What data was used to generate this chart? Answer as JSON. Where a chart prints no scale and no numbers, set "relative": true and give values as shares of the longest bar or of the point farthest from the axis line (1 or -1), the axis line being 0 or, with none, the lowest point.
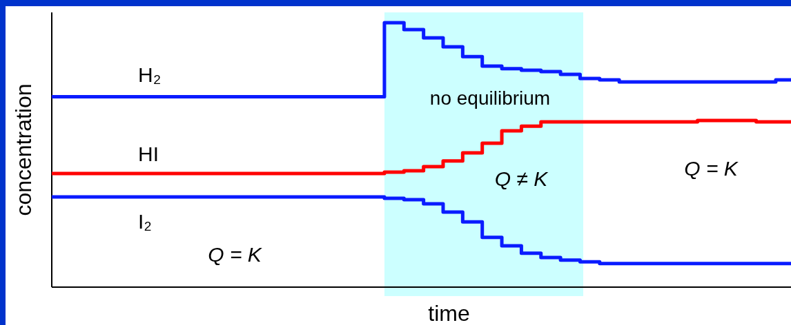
{
  "chart_data": {
    "type": "step",
    "relative": true,
    "xlabel": "time",
    "ylabel": "concentration",
    "categories": [
      null,
      null,
      null,
      null,
      null,
      null,
      null,
      null,
      null,
      null,
      null,
      null,
      null,
      null,
      null,
      null,
      null,
      null,
      null,
      null,
      null,
      null,
      null,
      null,
      null,
      null,
      null,
      null,
      null,
      null,
      null,
      null,
      null,
      null,
      null,
      null,
      null,
      null,
      null
    ],
    "series": [
      {
        "name": "H₂",
        "color": "#0a1bff",
        "values": [
          0.72,
          0.72,
          0.72,
          0.72,
          0.72,
          0.72,
          0.72,
          0.72,
          0.72,
          0.72,
          0.72,
          0.72,
          0.72,
          0.72,
          0.72,
          0.72,
          0.72,
          1.0,
          0.974,
          0.943,
          0.909,
          0.872,
          0.836,
          0.826,
          0.82,
          0.815,
          0.805,
          0.789,
          0.784,
          0.776,
          0.776,
          0.776,
          0.776,
          0.776,
          0.776,
          0.776,
          0.776,
          0.784,
          0.784
        ]
      },
      {
        "name": "HI",
        "color": "#ff0000",
        "values": [
          0.43,
          0.43,
          0.43,
          0.43,
          0.43,
          0.43,
          0.43,
          0.43,
          0.43,
          0.43,
          0.43,
          0.43,
          0.43,
          0.43,
          0.43,
          0.43,
          0.43,
          0.435,
          0.44,
          0.456,
          0.477,
          0.508,
          0.544,
          0.591,
          0.609,
          0.625,
          0.625,
          0.625,
          0.625,
          0.625,
          0.625,
          0.625,
          0.625,
          0.63,
          0.63,
          0.63,
          0.625,
          0.625,
          0.625
        ]
      },
      {
        "name": "I₂",
        "color": "#0a1bff",
        "values": [
          0.341,
          0.341,
          0.341,
          0.341,
          0.341,
          0.341,
          0.341,
          0.341,
          0.341,
          0.341,
          0.341,
          0.341,
          0.341,
          0.341,
          0.341,
          0.341,
          0.341,
          0.336,
          0.331,
          0.315,
          0.284,
          0.247,
          0.188,
          0.156,
          0.128,
          0.112,
          0.102,
          0.096,
          0.089,
          0.089,
          0.089,
          0.089,
          0.089,
          0.089,
          0.089,
          0.089,
          0.089,
          0.089,
          0.089
        ]
      }
    ],
    "annotations": [
      "no equilibrium",
      "Q = K",
      "Q ≠ K",
      "Q = K"
    ]
  }
}
